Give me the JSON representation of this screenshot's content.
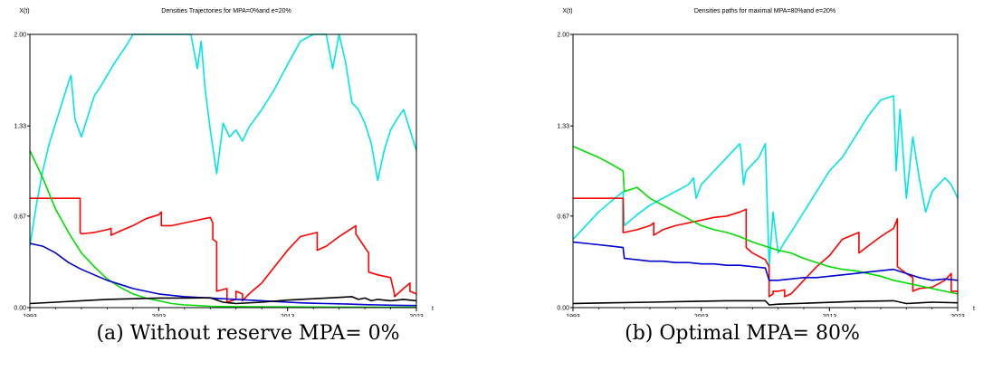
{
  "captions": {
    "a": "(a) Without reserve MPA= 0%",
    "b": "(b) Optimal MPA= 80%"
  },
  "chart_data": [
    {
      "type": "line",
      "title": "Densities Trajectories for MPA=0%and e=20%",
      "ylabel": "X(t)",
      "xlabel": "t",
      "xlim": [
        1993,
        2023
      ],
      "ylim": [
        0.0,
        2.0
      ],
      "xticks": [
        "1993",
        "2003",
        "2013",
        "2023"
      ],
      "yticks": [
        "0.00",
        "0.67",
        "1.33",
        "2.00"
      ],
      "series": [
        {
          "color": "#00e5e5",
          "x": [
            1993,
            1993.5,
            1994,
            1994.5,
            1995,
            1995.5,
            1996,
            1996.2,
            1996.5,
            1997,
            1997.5,
            1998,
            1998.5,
            1999,
            1999.5,
            2000,
            2000.5,
            2001,
            2002,
            2002.5,
            2003,
            2003.5,
            2004,
            2004.5,
            2005,
            2005.5,
            2006,
            2006.3,
            2006.6,
            2007,
            2007.5,
            2008,
            2008.5,
            2009,
            2009.5,
            2010,
            2011,
            2012,
            2013,
            2014,
            2015,
            2016,
            2016.5,
            2017,
            2017.5,
            2018,
            2018.5,
            2019,
            2019.5,
            2020,
            2020.5,
            2021,
            2021.5,
            2022,
            2022.5,
            2023
          ],
          "y": [
            0.45,
            0.75,
            1.0,
            1.2,
            1.35,
            1.5,
            1.65,
            1.7,
            1.38,
            1.25,
            1.4,
            1.55,
            1.62,
            1.7,
            1.78,
            1.85,
            1.92,
            2.0,
            2.0,
            2.0,
            2.0,
            2.0,
            2.0,
            2.0,
            2.0,
            2.0,
            1.75,
            1.95,
            1.6,
            1.3,
            0.98,
            1.35,
            1.25,
            1.3,
            1.22,
            1.32,
            1.45,
            1.6,
            1.78,
            1.95,
            2.0,
            2.0,
            1.75,
            2.0,
            1.8,
            1.5,
            1.45,
            1.35,
            1.2,
            0.93,
            1.15,
            1.3,
            1.38,
            1.45,
            1.3,
            1.15
          ]
        },
        {
          "color": "#ff0000",
          "x": [
            1993,
            1994,
            1995,
            1996,
            1996.9,
            1996.9,
            1997,
            1998,
            1999,
            1999.3,
            1999.3,
            2000,
            2001,
            2002,
            2003,
            2003.2,
            2003.2,
            2004,
            2005,
            2006,
            2007,
            2007.2,
            2007.2,
            2007.5,
            2007.5,
            2008.3,
            2008.3,
            2009,
            2009,
            2009.5,
            2009.5,
            2010,
            2010.5,
            2011,
            2012,
            2013,
            2014,
            2015.3,
            2015.3,
            2016,
            2017,
            2018,
            2018.3,
            2018.3,
            2019,
            2019.3,
            2019.3,
            2020,
            2021,
            2021.3,
            2021.3,
            2022,
            2022.5,
            2022.5,
            2023
          ],
          "y": [
            0.8,
            0.8,
            0.8,
            0.8,
            0.8,
            0.55,
            0.54,
            0.55,
            0.57,
            0.58,
            0.53,
            0.56,
            0.6,
            0.65,
            0.68,
            0.7,
            0.6,
            0.6,
            0.62,
            0.64,
            0.66,
            0.62,
            0.5,
            0.48,
            0.12,
            0.14,
            0.04,
            0.06,
            0.12,
            0.1,
            0.05,
            0.1,
            0.14,
            0.18,
            0.3,
            0.42,
            0.52,
            0.55,
            0.42,
            0.45,
            0.52,
            0.58,
            0.6,
            0.54,
            0.44,
            0.4,
            0.26,
            0.24,
            0.22,
            0.1,
            0.08,
            0.14,
            0.18,
            0.12,
            0.1
          ]
        },
        {
          "color": "#00dd00",
          "x": [
            1993,
            1994,
            1995,
            1996,
            1997,
            1998,
            1999,
            2000,
            2001,
            2002,
            2003,
            2004,
            2005,
            2006,
            2007,
            2008,
            2010,
            2013,
            2016,
            2020,
            2023
          ],
          "y": [
            1.15,
            0.95,
            0.72,
            0.55,
            0.4,
            0.3,
            0.21,
            0.15,
            0.1,
            0.07,
            0.05,
            0.03,
            0.02,
            0.015,
            0.01,
            0.008,
            0.006,
            0.005,
            0.004,
            0.003,
            0.002
          ]
        },
        {
          "color": "#0000cc",
          "x": [
            1993,
            1994,
            1995,
            1996,
            1997,
            1998,
            1999,
            2000,
            2001,
            2002,
            2003,
            2004,
            2005,
            2006,
            2007,
            2008,
            2009,
            2010,
            2011,
            2012,
            2013,
            2014,
            2015,
            2016,
            2017,
            2018,
            2019,
            2020,
            2021,
            2022,
            2023
          ],
          "y": [
            0.47,
            0.45,
            0.4,
            0.33,
            0.28,
            0.24,
            0.2,
            0.17,
            0.14,
            0.12,
            0.1,
            0.09,
            0.08,
            0.075,
            0.07,
            0.065,
            0.06,
            0.055,
            0.05,
            0.045,
            0.04,
            0.035,
            0.032,
            0.03,
            0.028,
            0.025,
            0.022,
            0.02,
            0.018,
            0.016,
            0.015
          ]
        },
        {
          "color": "#000000",
          "x": [
            1993,
            1995,
            1997,
            1999,
            2001,
            2003,
            2005,
            2007,
            2008,
            2009,
            2011,
            2013,
            2015,
            2017,
            2018,
            2018.5,
            2019,
            2019.5,
            2020,
            2021,
            2022,
            2023
          ],
          "y": [
            0.03,
            0.04,
            0.05,
            0.06,
            0.065,
            0.07,
            0.07,
            0.072,
            0.04,
            0.03,
            0.04,
            0.055,
            0.065,
            0.075,
            0.08,
            0.06,
            0.07,
            0.05,
            0.06,
            0.05,
            0.06,
            0.05
          ]
        }
      ]
    },
    {
      "type": "line",
      "title": "Densities paths for maximal MPA=80%and e=20%",
      "ylabel": "X(t)",
      "xlabel": "t",
      "xlim": [
        1993,
        2023
      ],
      "ylim": [
        0.0,
        2.0
      ],
      "xticks": [
        "1993",
        "2003",
        "2013",
        "2023"
      ],
      "yticks": [
        "0.00",
        "0.67",
        "1.33",
        "2.00"
      ],
      "series": [
        {
          "color": "#00e5e5",
          "x": [
            1993,
            1994,
            1995,
            1996,
            1996.9,
            1997,
            1998,
            1999,
            2000,
            2001,
            2002,
            2002.4,
            2002.6,
            2003,
            2004,
            2004.5,
            2005,
            2006,
            2006.1,
            2006.3,
            2006.5,
            2007,
            2007.5,
            2008,
            2008.3,
            2008.6,
            2009,
            2009.5,
            2010,
            2011,
            2012,
            2013,
            2014,
            2015,
            2016,
            2017,
            2018,
            2018.2,
            2018.5,
            2019,
            2019.5,
            2020,
            2020.5,
            2021,
            2021.5,
            2022,
            2022.5,
            2023
          ],
          "y": [
            0.5,
            0.6,
            0.7,
            0.78,
            0.85,
            0.6,
            0.68,
            0.75,
            0.8,
            0.85,
            0.9,
            0.95,
            0.8,
            0.9,
            1.0,
            1.05,
            1.1,
            1.2,
            1.15,
            0.9,
            1.0,
            1.05,
            1.1,
            1.2,
            0.3,
            0.7,
            0.4,
            0.48,
            0.55,
            0.7,
            0.85,
            1.0,
            1.1,
            1.25,
            1.4,
            1.52,
            1.55,
            1.0,
            1.45,
            0.8,
            1.25,
            0.95,
            0.7,
            0.85,
            0.9,
            0.95,
            0.9,
            0.8
          ]
        },
        {
          "color": "#ff0000",
          "x": [
            1993,
            1994,
            1995,
            1996,
            1996.9,
            1996.9,
            1997,
            1998,
            1999,
            1999.3,
            1999.3,
            2000,
            2001,
            2002,
            2003,
            2004,
            2005,
            2006,
            2006.5,
            2006.5,
            2007,
            2008,
            2008.3,
            2008.3,
            2008.6,
            2008.6,
            2009,
            2009.5,
            2009.5,
            2010,
            2011,
            2012,
            2013,
            2014,
            2015.3,
            2015.3,
            2016,
            2017,
            2018,
            2018.3,
            2018.3,
            2019,
            2019.5,
            2019.5,
            2020,
            2021,
            2022,
            2022.5,
            2022.5,
            2023
          ],
          "y": [
            0.8,
            0.8,
            0.8,
            0.8,
            0.8,
            0.55,
            0.55,
            0.57,
            0.6,
            0.62,
            0.53,
            0.57,
            0.6,
            0.62,
            0.64,
            0.66,
            0.67,
            0.7,
            0.72,
            0.44,
            0.4,
            0.35,
            0.3,
            0.08,
            0.1,
            0.12,
            0.12,
            0.13,
            0.08,
            0.1,
            0.2,
            0.3,
            0.38,
            0.5,
            0.55,
            0.4,
            0.45,
            0.52,
            0.58,
            0.65,
            0.3,
            0.25,
            0.22,
            0.12,
            0.14,
            0.15,
            0.2,
            0.25,
            0.12,
            0.12
          ]
        },
        {
          "color": "#00dd00",
          "x": [
            1993,
            1994,
            1995,
            1996,
            1996.9,
            1997,
            1998,
            1999,
            2000,
            2001,
            2002,
            2003,
            2004,
            2005,
            2006,
            2007,
            2008,
            2009,
            2010,
            2011,
            2012,
            2013,
            2014,
            2015,
            2016,
            2017,
            2018,
            2019,
            2020,
            2021,
            2022,
            2023
          ],
          "y": [
            1.18,
            1.14,
            1.1,
            1.05,
            1.0,
            0.85,
            0.88,
            0.8,
            0.75,
            0.7,
            0.65,
            0.6,
            0.57,
            0.55,
            0.52,
            0.48,
            0.45,
            0.42,
            0.4,
            0.36,
            0.33,
            0.3,
            0.28,
            0.27,
            0.25,
            0.23,
            0.2,
            0.18,
            0.16,
            0.14,
            0.12,
            0.1
          ]
        },
        {
          "color": "#0000cc",
          "x": [
            1993,
            1994,
            1995,
            1996,
            1996.9,
            1997,
            1998,
            1999,
            2000,
            2001,
            2002,
            2003,
            2004,
            2005,
            2006,
            2007,
            2008,
            2008.3,
            2009,
            2010,
            2011,
            2012,
            2013,
            2014,
            2015,
            2016,
            2017,
            2018,
            2019,
            2020,
            2021,
            2022,
            2023
          ],
          "y": [
            0.48,
            0.47,
            0.46,
            0.45,
            0.44,
            0.36,
            0.35,
            0.34,
            0.34,
            0.33,
            0.33,
            0.32,
            0.32,
            0.31,
            0.31,
            0.3,
            0.29,
            0.2,
            0.2,
            0.21,
            0.22,
            0.22,
            0.23,
            0.24,
            0.25,
            0.26,
            0.27,
            0.28,
            0.25,
            0.22,
            0.2,
            0.21,
            0.2
          ]
        },
        {
          "color": "#000000",
          "x": [
            1993,
            1996,
            1999,
            2002,
            2005,
            2008,
            2008.3,
            2009,
            2012,
            2015,
            2018,
            2019,
            2021,
            2023
          ],
          "y": [
            0.03,
            0.035,
            0.04,
            0.045,
            0.05,
            0.05,
            0.02,
            0.025,
            0.035,
            0.045,
            0.05,
            0.03,
            0.04,
            0.035
          ]
        }
      ]
    }
  ]
}
